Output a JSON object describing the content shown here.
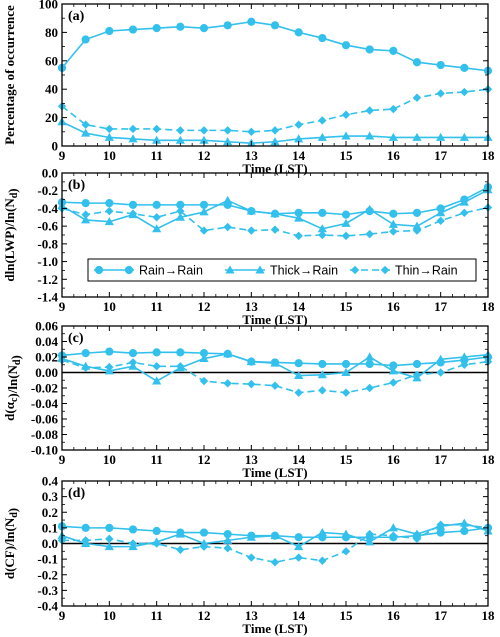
{
  "colors": {
    "series": "#33c0ec",
    "axis": "#000000"
  },
  "chart_data": [
    {
      "type": "line",
      "panel_label": "(a)",
      "xlabel": "Time (LST)",
      "ylabel": "Percentage of occurrence",
      "xlim": [
        9,
        18
      ],
      "ylim": [
        0,
        100
      ],
      "xticks": [
        9,
        10,
        11,
        12,
        13,
        14,
        15,
        16,
        17,
        18
      ],
      "yticks": [
        0,
        20,
        40,
        60,
        80,
        100
      ],
      "zero_line": false,
      "series": [
        {
          "marker": "circle",
          "dash": "solid",
          "x": [
            9,
            9.5,
            10,
            10.5,
            11,
            11.5,
            12,
            12.5,
            13,
            13.5,
            14,
            14.5,
            15,
            15.5,
            16,
            16.5,
            17,
            17.5,
            18
          ],
          "y": [
            55,
            75,
            81,
            82,
            83,
            84,
            83,
            85,
            87.5,
            85,
            80,
            76,
            71,
            68,
            67,
            59,
            57,
            55,
            53
          ]
        },
        {
          "marker": "triangle",
          "dash": "solid",
          "x": [
            9,
            9.5,
            10,
            10.5,
            11,
            11.5,
            12,
            12.5,
            13,
            13.5,
            14,
            14.5,
            15,
            15.5,
            16,
            16.5,
            17,
            17.5,
            18
          ],
          "y": [
            17,
            9,
            6,
            5,
            4,
            4,
            4,
            3,
            2,
            3,
            5,
            6,
            7,
            7,
            6,
            6,
            6,
            6,
            6
          ]
        },
        {
          "marker": "diamond",
          "dash": "dashed",
          "x": [
            9,
            9.5,
            10,
            10.5,
            11,
            11.5,
            12,
            12.5,
            13,
            13.5,
            14,
            14.5,
            15,
            15.5,
            16,
            16.5,
            17,
            17.5,
            18
          ],
          "y": [
            28,
            15,
            12,
            12,
            12,
            11,
            11,
            11,
            10,
            11,
            15,
            18,
            22,
            25,
            26,
            34,
            37,
            38,
            40
          ]
        }
      ]
    },
    {
      "type": "line",
      "panel_label": "(b)",
      "xlabel": "Time (LST)",
      "ylabel": "dln(LWP)/ln(Nd)",
      "xlim": [
        9,
        18
      ],
      "ylim": [
        -1.4,
        0.0
      ],
      "xticks": [
        9,
        10,
        11,
        12,
        13,
        14,
        15,
        16,
        17,
        18
      ],
      "yticks": [
        -1.4,
        -1.2,
        -1.0,
        -0.8,
        -0.6,
        -0.4,
        -0.2,
        0.0
      ],
      "zero_line": false,
      "legend": [
        "Rain→Rain",
        "Thick→Rain",
        "Thin→Rain"
      ],
      "series": [
        {
          "marker": "circle",
          "dash": "solid",
          "x": [
            9,
            9.5,
            10,
            10.5,
            11,
            11.5,
            12,
            12.5,
            13,
            13.5,
            14,
            14.5,
            15,
            15.5,
            16,
            16.5,
            17,
            17.5,
            18
          ],
          "y": [
            -0.33,
            -0.34,
            -0.34,
            -0.36,
            -0.36,
            -0.36,
            -0.36,
            -0.36,
            -0.43,
            -0.46,
            -0.45,
            -0.45,
            -0.47,
            -0.43,
            -0.46,
            -0.45,
            -0.4,
            -0.3,
            -0.16
          ]
        },
        {
          "marker": "triangle",
          "dash": "solid",
          "x": [
            9,
            9.5,
            10,
            10.5,
            11,
            11.5,
            12,
            12.5,
            13,
            13.5,
            14,
            14.5,
            15,
            15.5,
            16,
            16.5,
            17,
            17.5,
            18
          ],
          "y": [
            -0.37,
            -0.53,
            -0.55,
            -0.47,
            -0.63,
            -0.5,
            -0.44,
            -0.31,
            -0.43,
            -0.46,
            -0.51,
            -0.63,
            -0.57,
            -0.41,
            -0.58,
            -0.6,
            -0.45,
            -0.33,
            -0.19
          ]
        },
        {
          "marker": "diamond",
          "dash": "dashed",
          "x": [
            9,
            9.5,
            10,
            10.5,
            11,
            11.5,
            12,
            12.5,
            13,
            13.5,
            14,
            14.5,
            15,
            15.5,
            16,
            16.5,
            17,
            17.5,
            18
          ],
          "y": [
            -0.4,
            -0.47,
            -0.43,
            -0.46,
            -0.5,
            -0.43,
            -0.65,
            -0.61,
            -0.65,
            -0.64,
            -0.71,
            -0.7,
            -0.71,
            -0.69,
            -0.66,
            -0.65,
            -0.54,
            -0.45,
            -0.39
          ]
        }
      ]
    },
    {
      "type": "line",
      "panel_label": "(c)",
      "xlabel": "Time (LST)",
      "ylabel": "d(αc)/ln(Nd)",
      "xlim": [
        9,
        18
      ],
      "ylim": [
        -0.1,
        0.06
      ],
      "xticks": [
        9,
        10,
        11,
        12,
        13,
        14,
        15,
        16,
        17,
        18
      ],
      "yticks": [
        -0.1,
        -0.08,
        -0.06,
        -0.04,
        -0.02,
        0.0,
        0.02,
        0.04,
        0.06
      ],
      "zero_line": true,
      "series": [
        {
          "marker": "circle",
          "dash": "solid",
          "x": [
            9,
            9.5,
            10,
            10.5,
            11,
            11.5,
            12,
            12.5,
            13,
            13.5,
            14,
            14.5,
            15,
            15.5,
            16,
            16.5,
            17,
            17.5,
            18
          ],
          "y": [
            0.022,
            0.025,
            0.027,
            0.025,
            0.026,
            0.026,
            0.025,
            0.024,
            0.014,
            0.013,
            0.012,
            0.011,
            0.011,
            0.011,
            0.009,
            0.011,
            0.013,
            0.016,
            0.02
          ]
        },
        {
          "marker": "triangle",
          "dash": "solid",
          "x": [
            9,
            9.5,
            10,
            10.5,
            11,
            11.5,
            12,
            12.5,
            13,
            13.5,
            14,
            14.5,
            15,
            15.5,
            16,
            16.5,
            17,
            17.5,
            18
          ],
          "y": [
            0.018,
            0.008,
            0.002,
            0.008,
            -0.011,
            0.006,
            0.018,
            0.024,
            0.014,
            0.012,
            -0.004,
            -0.003,
            0.0,
            0.02,
            0.002,
            -0.007,
            0.017,
            0.02,
            0.023
          ]
        },
        {
          "marker": "diamond",
          "dash": "dashed",
          "x": [
            9,
            9.5,
            10,
            10.5,
            11,
            11.5,
            12,
            12.5,
            13,
            13.5,
            14,
            14.5,
            15,
            15.5,
            16,
            16.5,
            17,
            17.5,
            18
          ],
          "y": [
            0.016,
            0.006,
            0.007,
            0.013,
            0.008,
            0.008,
            -0.011,
            -0.014,
            -0.015,
            -0.017,
            -0.026,
            -0.023,
            -0.026,
            -0.02,
            -0.013,
            -0.003,
            0.0,
            0.01,
            0.014
          ]
        }
      ]
    },
    {
      "type": "line",
      "panel_label": "(d)",
      "xlabel": "Time (LST)",
      "ylabel": "d(CF)/ln(Nd)",
      "xlim": [
        9,
        18
      ],
      "ylim": [
        -0.4,
        0.4
      ],
      "xticks": [
        9,
        10,
        11,
        12,
        13,
        14,
        15,
        16,
        17,
        18
      ],
      "yticks": [
        -0.4,
        -0.3,
        -0.2,
        -0.1,
        0.0,
        0.1,
        0.2,
        0.3,
        0.4
      ],
      "zero_line": true,
      "series": [
        {
          "marker": "circle",
          "dash": "solid",
          "x": [
            9,
            9.5,
            10,
            10.5,
            11,
            11.5,
            12,
            12.5,
            13,
            13.5,
            14,
            14.5,
            15,
            15.5,
            16,
            16.5,
            17,
            17.5,
            18
          ],
          "y": [
            0.11,
            0.1,
            0.1,
            0.09,
            0.08,
            0.07,
            0.07,
            0.06,
            0.05,
            0.05,
            0.04,
            0.04,
            0.04,
            0.04,
            0.04,
            0.05,
            0.07,
            0.08,
            0.1
          ]
        },
        {
          "marker": "triangle",
          "dash": "solid",
          "x": [
            9,
            9.5,
            10,
            10.5,
            11,
            11.5,
            12,
            12.5,
            13,
            13.5,
            14,
            14.5,
            15,
            15.5,
            16,
            16.5,
            17,
            17.5,
            18
          ],
          "y": [
            0.05,
            0.0,
            -0.02,
            -0.02,
            0.01,
            0.06,
            0.0,
            0.02,
            0.04,
            0.05,
            -0.02,
            0.07,
            0.06,
            0.01,
            0.1,
            0.06,
            0.11,
            0.13,
            0.08
          ]
        },
        {
          "marker": "diamond",
          "dash": "dashed",
          "x": [
            9,
            9.5,
            10,
            10.5,
            11,
            11.5,
            12,
            12.5,
            13,
            13.5,
            14,
            14.5,
            15,
            15.5,
            16,
            16.5,
            17,
            17.5,
            18
          ],
          "y": [
            0.02,
            0.02,
            0.03,
            0.0,
            0.0,
            -0.04,
            -0.02,
            -0.03,
            -0.09,
            -0.12,
            -0.09,
            -0.11,
            -0.05,
            0.06,
            0.05,
            0.03,
            0.12,
            0.12,
            0.1
          ]
        }
      ]
    }
  ]
}
